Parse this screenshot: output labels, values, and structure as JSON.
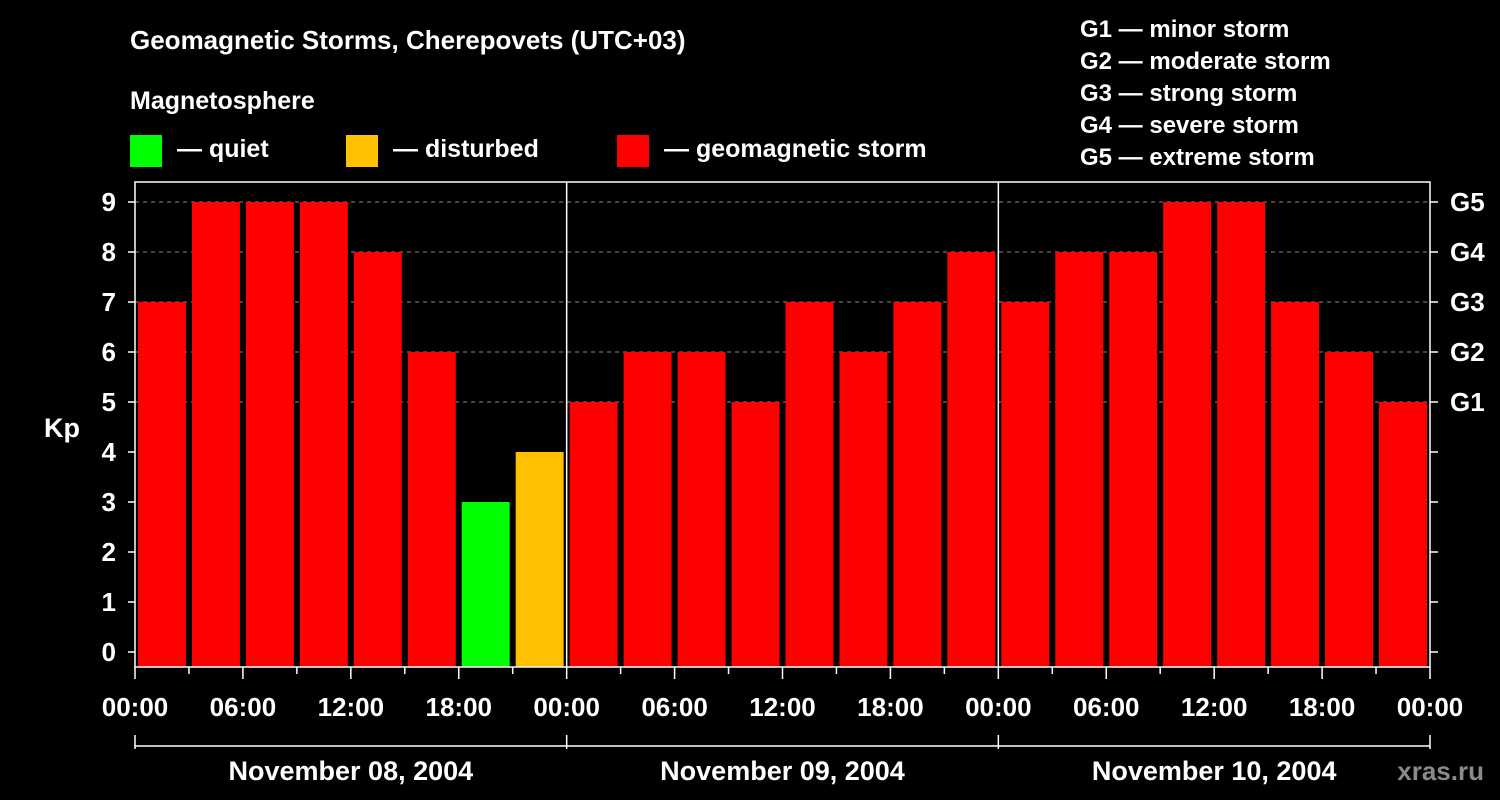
{
  "chart_data": {
    "type": "bar",
    "title": "Geomagnetic Storms, Cherepovets (UTC+03)",
    "ylabel": "Kp",
    "ylim": [
      0,
      9
    ],
    "yticks": [
      "0",
      "1",
      "2",
      "3",
      "4",
      "5",
      "6",
      "7",
      "8",
      "9"
    ],
    "right_ticks": [
      {
        "kp": 5,
        "label": "G1"
      },
      {
        "kp": 6,
        "label": "G2"
      },
      {
        "kp": 7,
        "label": "G3"
      },
      {
        "kp": 8,
        "label": "G4"
      },
      {
        "kp": 9,
        "label": "G5"
      }
    ],
    "legend_heading": "Magnetosphere",
    "legend": [
      {
        "label": "— quiet",
        "color": "#00ff00"
      },
      {
        "label": "— disturbed",
        "color": "#ffc000"
      },
      {
        "label": "— geomagnetic storm",
        "color": "#ff0000"
      }
    ],
    "storm_scale": [
      "G1 — minor storm",
      "G2 — moderate storm",
      "G3 — strong storm",
      "G4 — severe storm",
      "G5 — extreme storm"
    ],
    "xtick_labels": [
      "00:00",
      "06:00",
      "12:00",
      "18:00",
      "00:00",
      "06:00",
      "12:00",
      "18:00",
      "00:00",
      "06:00",
      "12:00",
      "18:00",
      "00:00"
    ],
    "days": [
      "November 08, 2004",
      "November 09, 2004",
      "November 10, 2004"
    ],
    "values": [
      7,
      9,
      9,
      9,
      8,
      6,
      3,
      4,
      5,
      6,
      6,
      5,
      7,
      6,
      7,
      8,
      7,
      8,
      8,
      9,
      9,
      7,
      6,
      5
    ],
    "colors": {
      "quiet": "#00ff00",
      "disturbed": "#ffc000",
      "storm": "#ff0000"
    },
    "grid": "dashed at Kp 5-9"
  },
  "watermark": "xras.ru"
}
